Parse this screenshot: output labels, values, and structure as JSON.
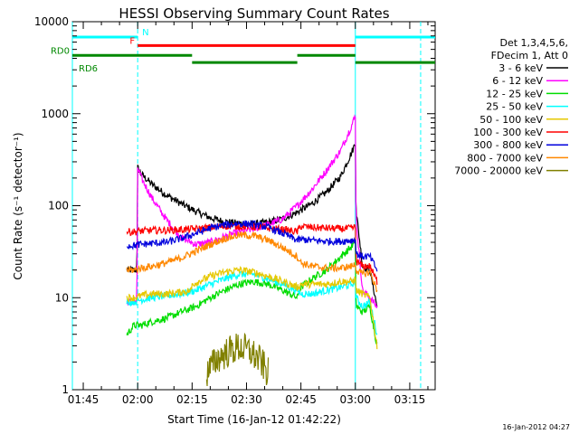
{
  "chart_data": {
    "type": "line",
    "title": "HESSI Observing Summary Count Rates",
    "xlabel": "Start Time (16-Jan-12 01:42:22)",
    "ylabel": "Count Rate (s⁻¹ detector⁻¹)",
    "x_unit": "minutes after 01:42:22",
    "xlim": [
      0,
      100
    ],
    "ylim": [
      1,
      10000
    ],
    "y_scale": "log",
    "x_ticks": [
      {
        "t": 3,
        "label": "01:45"
      },
      {
        "t": 18,
        "label": "02:00"
      },
      {
        "t": 33,
        "label": "02:15"
      },
      {
        "t": 48,
        "label": "02:30"
      },
      {
        "t": 63,
        "label": "02:45"
      },
      {
        "t": 78,
        "label": "03:00"
      },
      {
        "t": 93,
        "label": "03:15"
      }
    ],
    "y_ticks": [
      {
        "v": 1,
        "label": "1"
      },
      {
        "v": 10,
        "label": "10"
      },
      {
        "v": 100,
        "label": "100"
      },
      {
        "v": 1000,
        "label": "1000"
      },
      {
        "v": 10000,
        "label": "10000"
      }
    ],
    "legend_header": [
      "Det 1,3,4,5,6,",
      "FDecim 1, Att 0"
    ],
    "legend_position": "right",
    "series": [
      {
        "name": "3 - 6 keV",
        "color": "#000000",
        "x": [
          15,
          17.8,
          18,
          19,
          22,
          26,
          30,
          34,
          38,
          42,
          46,
          50,
          54,
          58,
          62,
          66,
          70,
          74,
          77,
          78,
          78.2,
          80,
          82,
          84
        ],
        "y": [
          20,
          20,
          260,
          220,
          170,
          130,
          105,
          87,
          74,
          67,
          64,
          63,
          66,
          72,
          85,
          105,
          140,
          210,
          380,
          480,
          90,
          22,
          20,
          8
        ]
      },
      {
        "name": "6 - 12 keV",
        "color": "#ff00ff",
        "x": [
          15,
          17.8,
          18,
          19,
          22,
          26,
          30,
          34,
          38,
          42,
          46,
          50,
          54,
          58,
          62,
          66,
          70,
          74,
          77,
          78,
          78.2,
          80,
          82,
          84
        ],
        "y": [
          9,
          9,
          260,
          200,
          120,
          70,
          45,
          38,
          40,
          46,
          52,
          56,
          62,
          72,
          100,
          150,
          240,
          400,
          750,
          950,
          70,
          12,
          10,
          8
        ]
      },
      {
        "name": "12 - 25 keV",
        "color": "#00dd00",
        "x": [
          15,
          17,
          19,
          22,
          26,
          30,
          34,
          38,
          42,
          46,
          50,
          54,
          58,
          62,
          63,
          66,
          70,
          74,
          77,
          78,
          78.2,
          80,
          82,
          84
        ],
        "y": [
          4,
          5,
          5,
          5.5,
          6,
          7,
          8,
          10,
          12,
          14,
          15,
          14,
          12,
          10,
          13,
          16,
          20,
          28,
          36,
          40,
          8,
          7,
          8,
          3
        ]
      },
      {
        "name": "25 - 50 keV",
        "color": "#00ffff",
        "x": [
          15,
          17,
          19,
          22,
          26,
          30,
          34,
          38,
          42,
          46,
          50,
          54,
          58,
          62,
          63,
          66,
          70,
          74,
          77,
          78,
          78.2,
          80,
          82,
          84
        ],
        "y": [
          9,
          9,
          9.5,
          10,
          10.5,
          11,
          12,
          14,
          16,
          18,
          18,
          16,
          14,
          12,
          11,
          11,
          12,
          13,
          14,
          15,
          10,
          8,
          9,
          4
        ]
      },
      {
        "name": "50 - 100 keV",
        "color": "#e6c800",
        "x": [
          15,
          17,
          19,
          22,
          26,
          30,
          32.8,
          33,
          38,
          42,
          46,
          50,
          54,
          58,
          62,
          63,
          66,
          70,
          74,
          77,
          78,
          78.2,
          80,
          82,
          84
        ],
        "y": [
          10,
          10,
          10.5,
          11,
          11,
          11.5,
          12,
          14,
          17,
          19,
          20,
          19,
          17,
          15,
          13,
          14,
          14,
          14,
          15,
          15,
          16,
          12,
          11,
          10,
          3
        ]
      },
      {
        "name": "100 - 300 keV",
        "color": "#ff0000",
        "x": [
          15,
          17,
          19,
          22,
          26,
          30,
          34,
          38,
          42,
          46,
          50,
          54,
          58,
          62,
          63,
          66,
          70,
          74,
          77,
          78,
          78.2,
          80,
          82,
          84
        ],
        "y": [
          52,
          52,
          53,
          54,
          54,
          55,
          56,
          58,
          60,
          60,
          59,
          57,
          55,
          52,
          60,
          58,
          57,
          56,
          57,
          58,
          25,
          22,
          22,
          15
        ]
      },
      {
        "name": "300 - 800 keV",
        "color": "#0000dd",
        "x": [
          15,
          17,
          19,
          22,
          26,
          30,
          34,
          38,
          42,
          46,
          50,
          54,
          58,
          62,
          63,
          66,
          70,
          74,
          77,
          78,
          78.2,
          80,
          82,
          84
        ],
        "y": [
          37,
          37,
          38,
          39,
          40,
          44,
          50,
          57,
          62,
          64,
          63,
          58,
          50,
          42,
          43,
          42,
          41,
          41,
          42,
          43,
          30,
          28,
          28,
          20
        ]
      },
      {
        "name": "800 - 7000 keV",
        "color": "#ff8800",
        "x": [
          15,
          17,
          19,
          22,
          26,
          30,
          34,
          38,
          42,
          46,
          50,
          54,
          58,
          62,
          63,
          66,
          70,
          74,
          77,
          78,
          78.2,
          80,
          82,
          84
        ],
        "y": [
          20,
          20,
          21,
          22,
          24,
          27,
          32,
          38,
          44,
          48,
          47,
          42,
          35,
          28,
          24,
          22,
          21,
          21,
          22,
          23,
          20,
          18,
          19,
          12
        ]
      },
      {
        "name": "7000 - 20000 keV",
        "color": "#808000",
        "x": [
          37,
          40,
          43,
          46,
          49,
          52,
          54
        ],
        "y": [
          1.5,
          2.2,
          2.6,
          2.9,
          2.6,
          2.0,
          1.5
        ]
      }
    ],
    "flags": [
      {
        "name": "N",
        "color": "#00ffff",
        "y_level": 6800,
        "segments": [
          [
            0,
            18
          ],
          [
            78,
            100
          ]
        ]
      },
      {
        "name": "F",
        "color": "#ff0000",
        "y_level": 5500,
        "segments": [
          [
            18,
            78
          ]
        ]
      },
      {
        "name": "RD0",
        "color": "#008800",
        "y_level": 4300,
        "segments": [
          [
            0,
            33
          ],
          [
            62,
            78
          ]
        ]
      },
      {
        "name": "RD6",
        "color": "#008800",
        "y_level": 3600,
        "segments": [
          [
            33,
            62
          ],
          [
            78,
            100
          ]
        ]
      }
    ],
    "vertical_lines": [
      {
        "t": 0,
        "style": "solid",
        "color": "#00ffff"
      },
      {
        "t": 18,
        "style": "dashed",
        "color": "#00ffff"
      },
      {
        "t": 78,
        "style": "solid",
        "color": "#00ffff"
      },
      {
        "t": 96,
        "style": "dashed",
        "color": "#00ffff"
      }
    ]
  },
  "footer": {
    "timestamp": "16-Jan-2012 04:27"
  }
}
